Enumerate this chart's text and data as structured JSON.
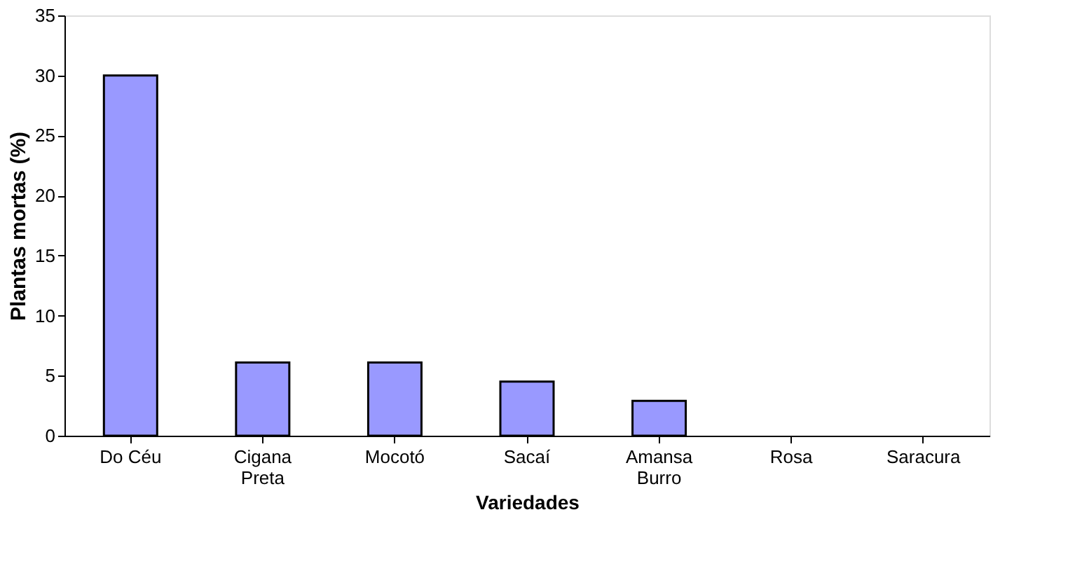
{
  "chart_data": {
    "type": "bar",
    "xlabel": "Variedades",
    "ylabel": "Plantas mortas (%)",
    "categories": [
      "Do Céu",
      "Cigana Preta",
      "Mocotó",
      "Sacaí",
      "Amansa Burro",
      "Rosa",
      "Saracura"
    ],
    "values": [
      30,
      6.1,
      6.1,
      4.5,
      2.9,
      0,
      0
    ],
    "color": "#9999ff",
    "ylim": [
      0,
      35
    ],
    "yticks": [
      0,
      5,
      10,
      15,
      20,
      25,
      30,
      35
    ],
    "grid": false
  }
}
